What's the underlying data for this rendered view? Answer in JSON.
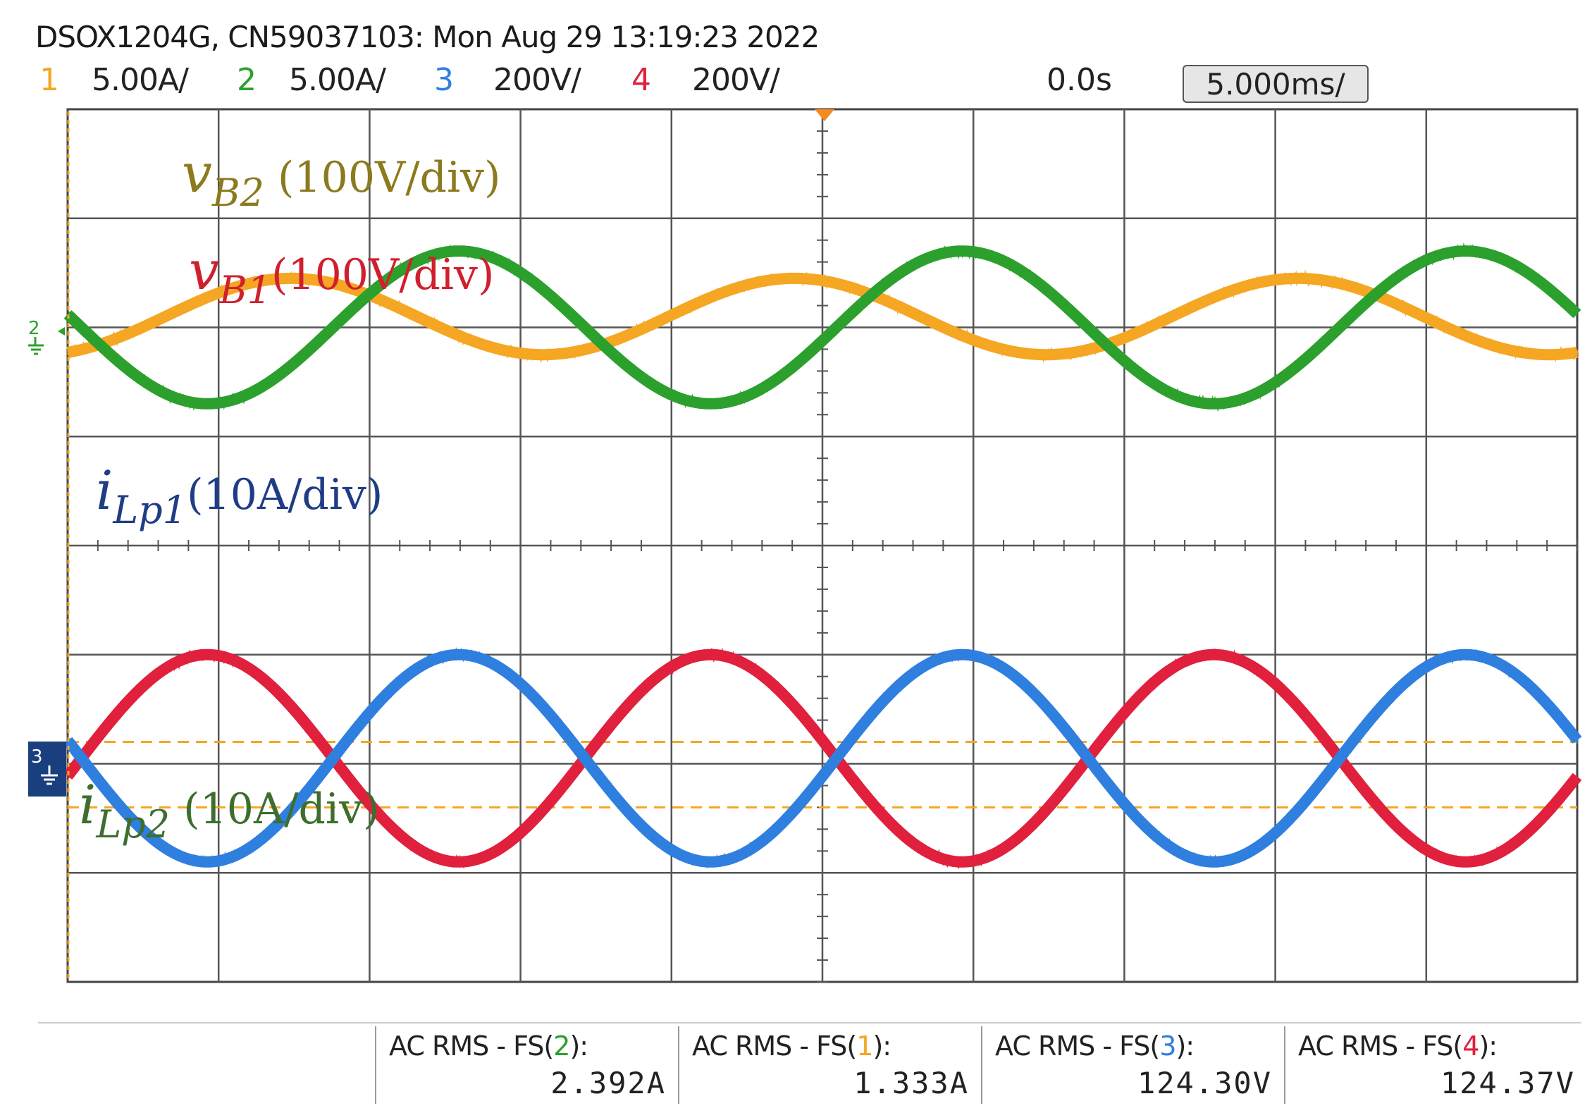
{
  "header": {
    "title": "DSOX1204G, CN59037103: Mon Aug 29 13:19:23 2022",
    "channels": [
      {
        "num": "1",
        "scale": "5.00A/",
        "color": "#f5a623"
      },
      {
        "num": "2",
        "scale": "5.00A/",
        "color": "#2ca02c"
      },
      {
        "num": "3",
        "scale": "200V/",
        "color": "#2f7fdf"
      },
      {
        "num": "4",
        "scale": "200V/",
        "color": "#e0203c"
      }
    ],
    "time_position": "0.0s",
    "time_scale": "5.000ms/"
  },
  "annotations": [
    {
      "main": "v",
      "sub": "B2",
      "suffix": " (100V/div)",
      "color": "#8b7a1e"
    },
    {
      "main": "v",
      "sub": "B1",
      "suffix": "(100V/div)",
      "color": "#d0202e"
    },
    {
      "main": "i",
      "sub": "Lp1",
      "suffix": "(10A/div)",
      "color": "#1f3c86"
    },
    {
      "main": "i",
      "sub": "Lp2",
      "suffix": " (10A/div)",
      "color": "#3e6e2e"
    }
  ],
  "measurements": [
    {
      "label": "AC RMS - FS(",
      "channel": "2",
      "label_end": "):",
      "value": "2.392A",
      "channel_color": "#2ca02c"
    },
    {
      "label": "AC RMS - FS(",
      "channel": "1",
      "label_end": "):",
      "value": "1.333A",
      "channel_color": "#f5a623"
    },
    {
      "label": "AC RMS - FS(",
      "channel": "3",
      "label_end": "):",
      "value": "124.30V",
      "channel_color": "#2f7fdf"
    },
    {
      "label": "AC RMS - FS(",
      "channel": "4",
      "label_end": "):",
      "value": "124.37V",
      "channel_color": "#e0203c"
    }
  ],
  "chart_data": {
    "type": "line",
    "title": "DSOX1204G, CN59037103: Mon Aug 29 13:19:23 2022",
    "x_unit": "ms",
    "x_range": [
      -25,
      25
    ],
    "y_unit": "div",
    "y_range": [
      -4,
      4
    ],
    "divisions_x": 10,
    "divisions_y": 8,
    "grid": true,
    "series": [
      {
        "name": "Ch1 (orange)",
        "color": "#f5a623",
        "period_ms": 16.67,
        "offset_div": 2.1,
        "amplitude_div": 0.35,
        "phase_deg": 110
      },
      {
        "name": "Ch2 (green)",
        "color": "#2ca02c",
        "period_ms": 16.67,
        "offset_div": 2.0,
        "amplitude_div": 0.7,
        "phase_deg": -10
      },
      {
        "name": "Ch3 (blue)",
        "color": "#2f7fdf",
        "period_ms": 16.67,
        "offset_div": -1.95,
        "amplitude_div": 0.95,
        "phase_deg": -10
      },
      {
        "name": "Ch4 (red)",
        "color": "#e0203c",
        "period_ms": 16.67,
        "offset_div": -1.95,
        "amplitude_div": 0.95,
        "phase_deg": 170
      }
    ],
    "dashed_levels_div": [
      -1.8,
      -2.4
    ]
  }
}
